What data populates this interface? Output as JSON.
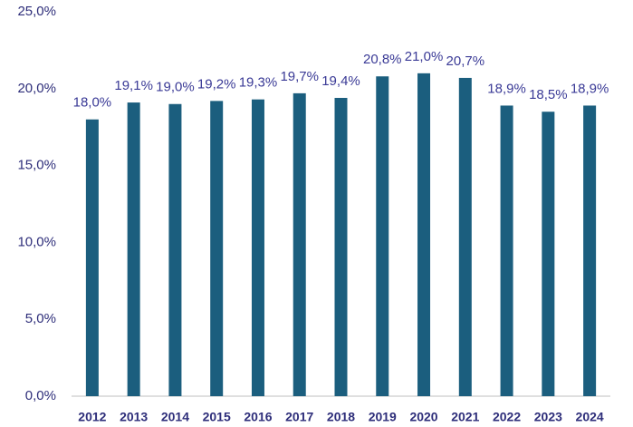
{
  "chart_data": {
    "type": "bar",
    "categories": [
      "2012",
      "2013",
      "2014",
      "2015",
      "2016",
      "2017",
      "2018",
      "2019",
      "2020",
      "2021",
      "2022",
      "2023",
      "2024"
    ],
    "values": [
      18.0,
      19.1,
      19.0,
      19.2,
      19.3,
      19.7,
      19.4,
      20.8,
      21.0,
      20.7,
      18.9,
      18.5,
      18.9
    ],
    "value_labels": [
      "18,0%",
      "19,1%",
      "19,0%",
      "19,2%",
      "19,3%",
      "19,7%",
      "19,4%",
      "20,8%",
      "21,0%",
      "20,7%",
      "18,9%",
      "18,5%",
      "18,9%"
    ],
    "color": "#1b5e7e",
    "ylim": [
      0,
      25
    ],
    "yticks": [
      {
        "value": 0,
        "label": "0,0%"
      },
      {
        "value": 5,
        "label": "5,0%"
      },
      {
        "value": 10,
        "label": "10,0%"
      },
      {
        "value": 15,
        "label": "15,0%"
      },
      {
        "value": 20,
        "label": "20,0%"
      },
      {
        "value": 25,
        "label": "25,0%"
      }
    ],
    "grid": false
  }
}
